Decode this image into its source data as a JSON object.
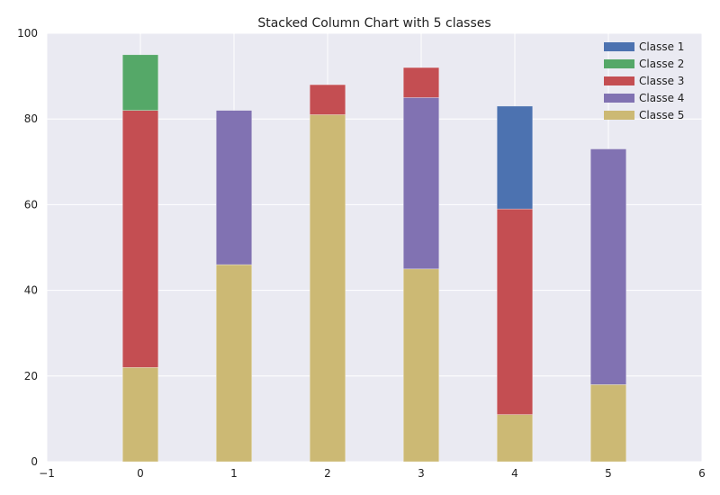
{
  "chart_data": {
    "type": "bar",
    "stacked": true,
    "title": "Stacked Column Chart with 5 classes",
    "xlabel": "",
    "ylabel": "",
    "categories": [
      0,
      1,
      2,
      3,
      4,
      5
    ],
    "xlim": [
      -1,
      6
    ],
    "ylim": [
      0,
      100
    ],
    "xticks": [
      -1,
      0,
      1,
      2,
      3,
      4,
      5,
      6
    ],
    "yticks": [
      0,
      20,
      40,
      60,
      80,
      100
    ],
    "bar_width": 0.38,
    "grid": true,
    "legend_position": "top-right",
    "series": [
      {
        "name": "Classe 5",
        "color": "#ccb974",
        "values": [
          22,
          46,
          81,
          45,
          11,
          18
        ]
      },
      {
        "name": "Classe 4",
        "color": "#8172b2",
        "values": [
          0,
          36,
          0,
          40,
          0,
          55
        ]
      },
      {
        "name": "Classe 3",
        "color": "#c44e52",
        "values": [
          60,
          0,
          7,
          7,
          48,
          0
        ]
      },
      {
        "name": "Classe 2",
        "color": "#55a868",
        "values": [
          13,
          0,
          0,
          0,
          0,
          0
        ]
      },
      {
        "name": "Classe 1",
        "color": "#4c72b0",
        "values": [
          0,
          0,
          0,
          0,
          24,
          0
        ]
      }
    ],
    "legend_order": [
      "Classe 1",
      "Classe 2",
      "Classe 3",
      "Classe 4",
      "Classe 5"
    ],
    "background_color": "#eaeaf2",
    "grid_color": "#ffffff"
  }
}
